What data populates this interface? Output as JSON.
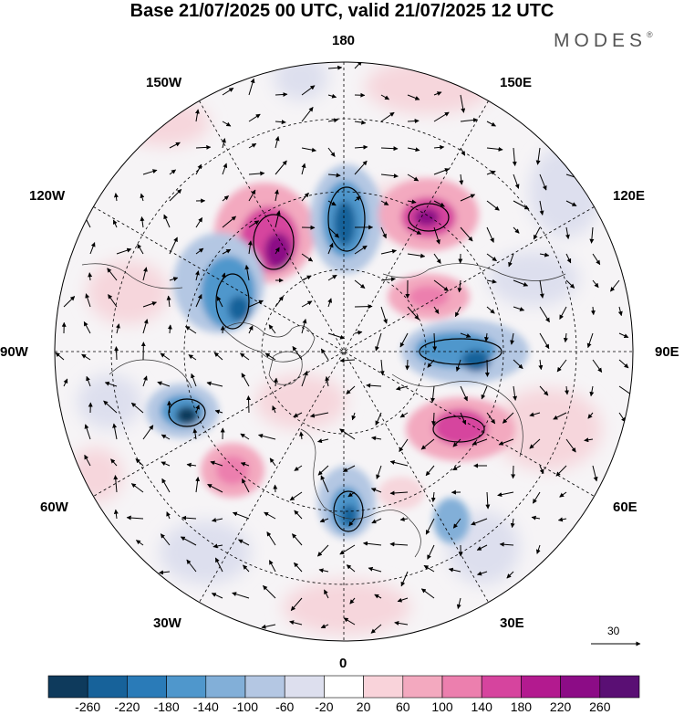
{
  "title": "Base 21/07/2025 00 UTC, valid 21/07/2025 12 UTC",
  "brand": {
    "name": "MODES",
    "mark": "®"
  },
  "map": {
    "projection": "north-polar-stereographic",
    "longitude_labels": {
      "top": "180",
      "top_right": "150E",
      "right_upper": "120E",
      "right": "90E",
      "right_lower": "60E",
      "bottom_right": "30E",
      "bottom": "0",
      "bottom_left": "30W",
      "left_lower": "60W",
      "left": "90W",
      "left_upper": "120W",
      "top_left": "150W"
    },
    "reference_vector": {
      "label": "30"
    }
  },
  "colorbar": {
    "ticks": [
      "-260",
      "-220",
      "-180",
      "-140",
      "-100",
      "-60",
      "-20",
      "20",
      "60",
      "100",
      "140",
      "180",
      "220",
      "260"
    ],
    "colors": [
      "#0e3a5c",
      "#17629a",
      "#2a7bb8",
      "#4f97cc",
      "#82afd8",
      "#b4c7e3",
      "#dddfee",
      "#ffffff",
      "#f9d3da",
      "#f3a9bf",
      "#ec7fae",
      "#d6449e",
      "#b31a8f",
      "#8c0c86",
      "#5a0f74"
    ]
  }
}
